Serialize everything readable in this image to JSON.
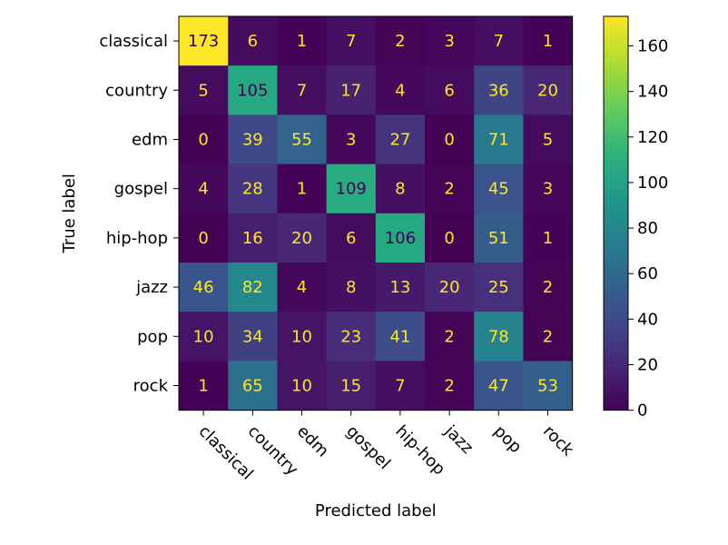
{
  "chart_data": {
    "type": "heatmap",
    "title": "",
    "xlabel": "Predicted label",
    "ylabel": "True label",
    "x_categories": [
      "classical",
      "country",
      "edm",
      "gospel",
      "hip-hop",
      "jazz",
      "pop",
      "rock"
    ],
    "y_categories": [
      "classical",
      "country",
      "edm",
      "gospel",
      "hip-hop",
      "jazz",
      "pop",
      "rock"
    ],
    "values": [
      [
        173,
        6,
        1,
        7,
        2,
        3,
        7,
        1
      ],
      [
        5,
        105,
        7,
        17,
        4,
        6,
        36,
        20
      ],
      [
        0,
        39,
        55,
        3,
        27,
        0,
        71,
        5
      ],
      [
        4,
        28,
        1,
        109,
        8,
        2,
        45,
        3
      ],
      [
        0,
        16,
        20,
        6,
        106,
        0,
        51,
        1
      ],
      [
        46,
        82,
        4,
        8,
        13,
        20,
        25,
        2
      ],
      [
        10,
        34,
        10,
        23,
        41,
        2,
        78,
        2
      ],
      [
        1,
        65,
        10,
        15,
        7,
        2,
        47,
        53
      ]
    ],
    "colormap": "viridis",
    "value_range": [
      0,
      173
    ],
    "colorbar_ticks": [
      0,
      20,
      40,
      60,
      80,
      100,
      120,
      140,
      160
    ],
    "label_color_dark": "#fde725",
    "label_color_light": "#440154",
    "label_threshold": 86.5,
    "grid": false,
    "legend": "colorbar-right"
  }
}
